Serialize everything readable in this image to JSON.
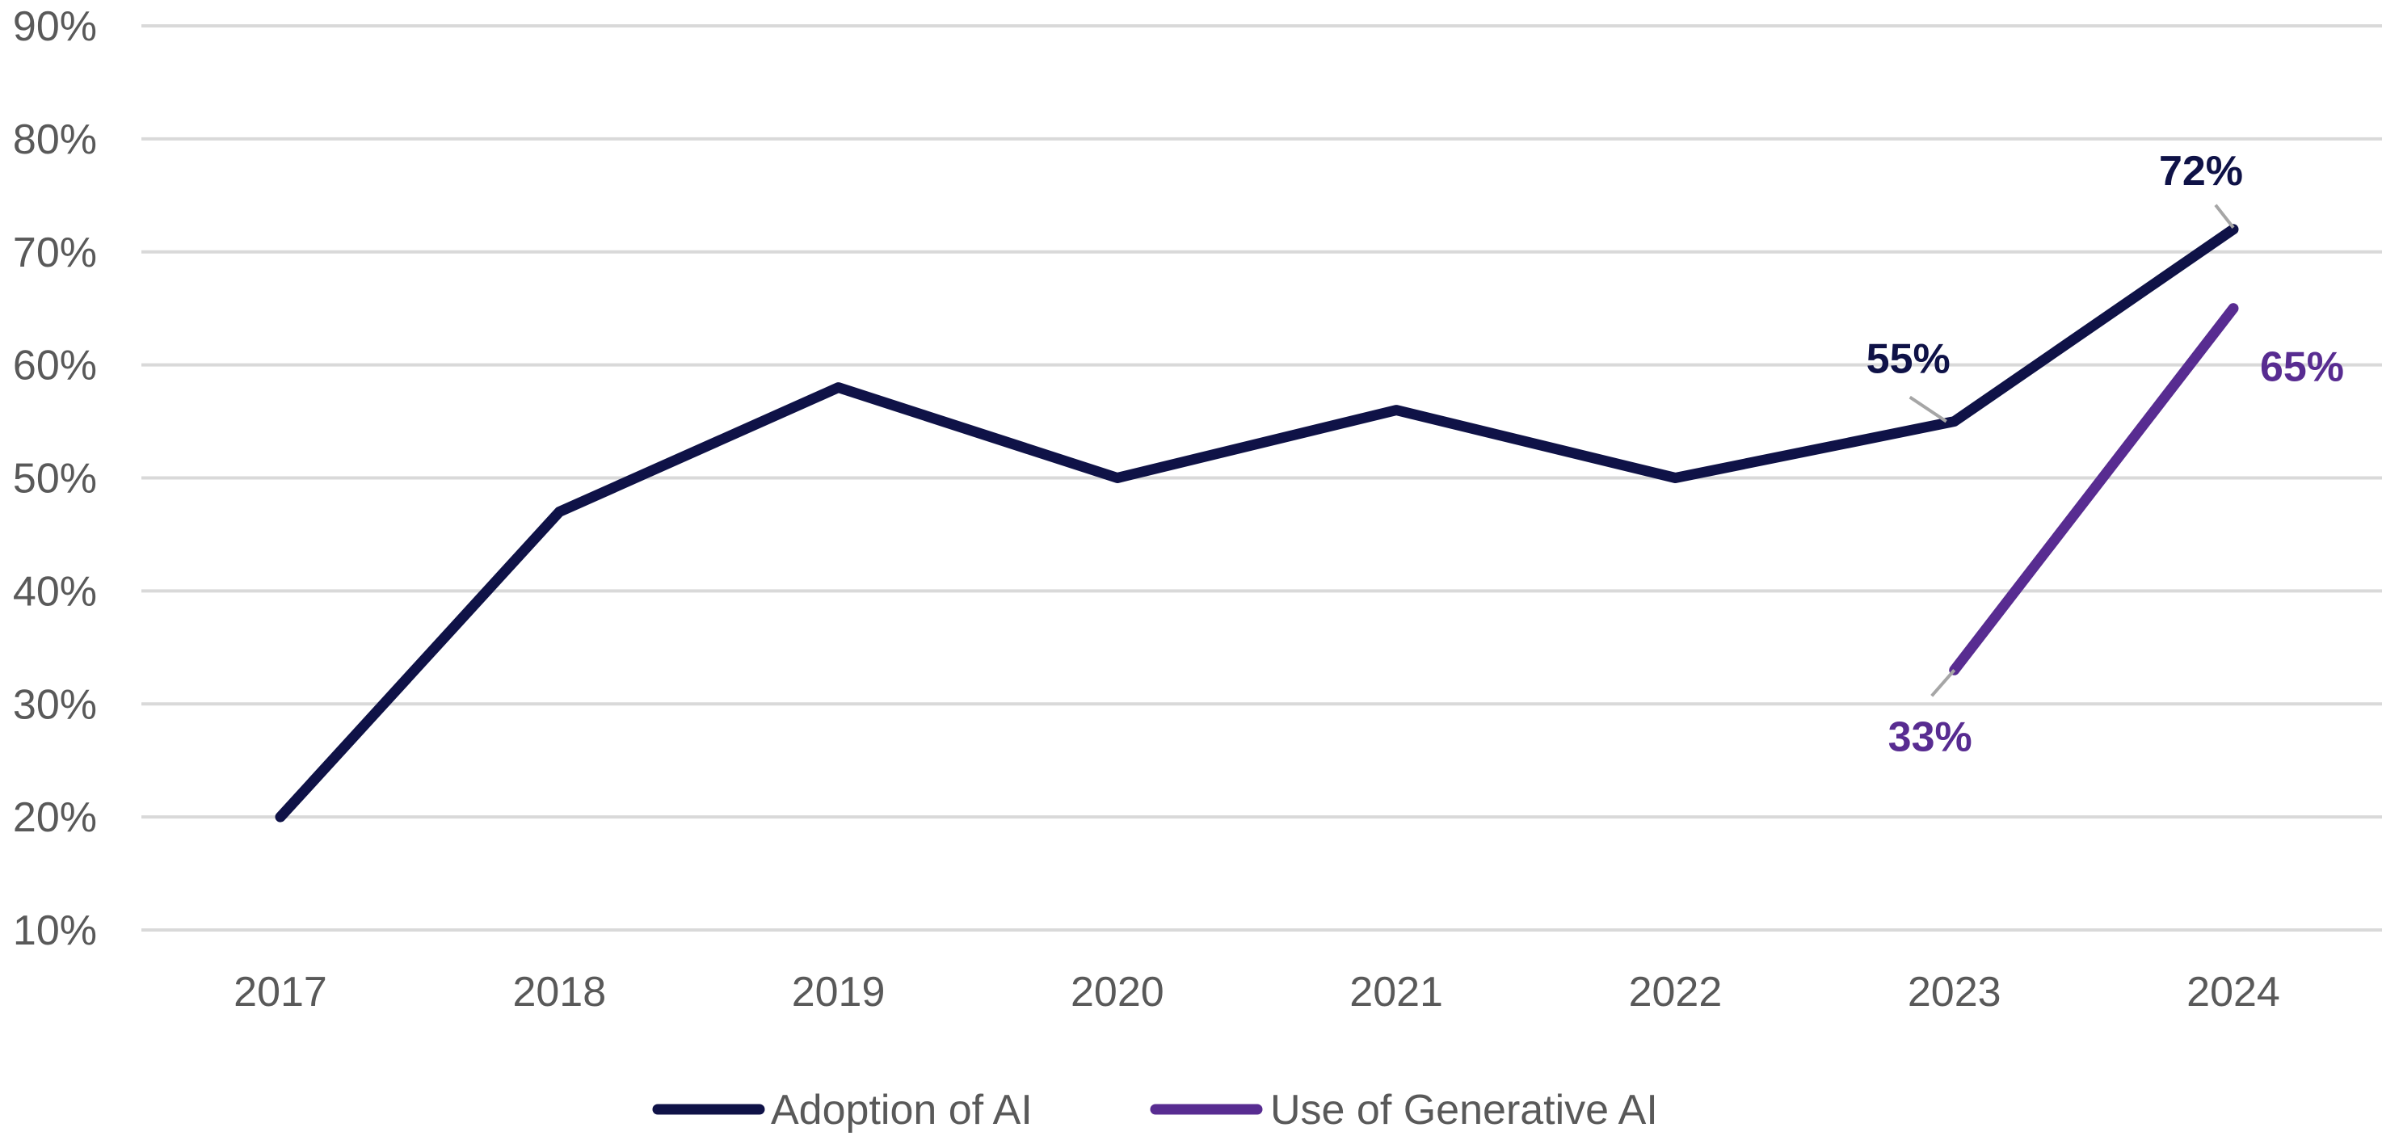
{
  "chart_data": {
    "type": "line",
    "categories": [
      "2017",
      "2018",
      "2019",
      "2020",
      "2021",
      "2022",
      "2023",
      "2024"
    ],
    "ylim": [
      0.1,
      0.9
    ],
    "yticks": [
      0.1,
      0.2,
      0.3,
      0.4,
      0.5,
      0.6,
      0.7,
      0.8,
      0.9
    ],
    "ytick_labels": [
      "10%",
      "20%",
      "30%",
      "40%",
      "50%",
      "60%",
      "70%",
      "80%",
      "90%"
    ],
    "grid": true,
    "legend_position": "bottom",
    "series": [
      {
        "name": "Adoption of AI",
        "color": "#0f1247",
        "values": [
          0.2,
          0.47,
          0.58,
          0.5,
          0.56,
          0.5,
          0.55,
          0.72
        ],
        "data_labels": [
          {
            "category": "2023",
            "text": "55%"
          },
          {
            "category": "2024",
            "text": "72%"
          }
        ]
      },
      {
        "name": "Use of Generative AI",
        "color": "#582c91",
        "values": [
          null,
          null,
          null,
          null,
          null,
          null,
          0.33,
          0.65
        ],
        "data_labels": [
          {
            "category": "2023",
            "text": "33%"
          },
          {
            "category": "2024",
            "text": "65%"
          }
        ]
      }
    ],
    "colors": {
      "grid": "#d9d9d9",
      "tick_text": "#595959",
      "leader_line": "#a6a6a6"
    }
  }
}
